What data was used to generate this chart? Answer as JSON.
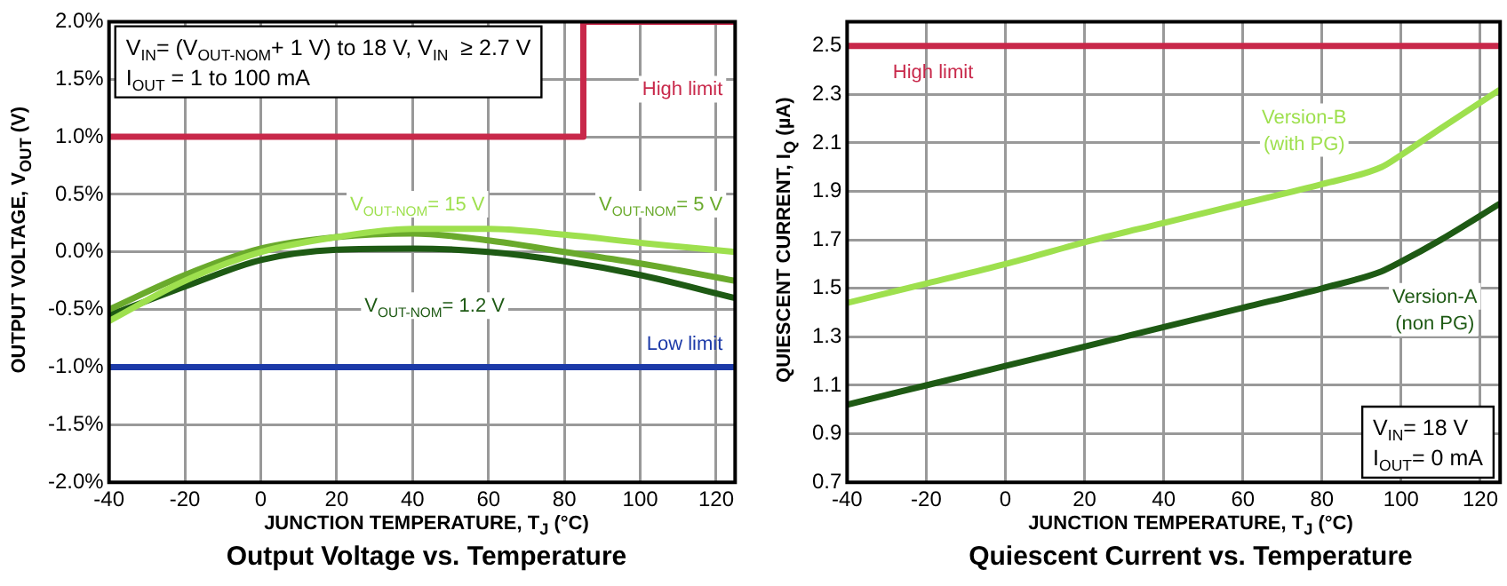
{
  "chart_data": [
    {
      "type": "line",
      "title": "Output Voltage vs. Temperature",
      "xlabel": "JUNCTION TEMPERATURE, T$_{J}$ (°C)",
      "ylabel": "OUTPUT VOLTAGE, V$_{OUT}$ (V)",
      "xlim": [
        -40,
        125
      ],
      "xticks": [
        -40,
        -20,
        0,
        20,
        40,
        60,
        80,
        100,
        120
      ],
      "ylim": [
        -2,
        2
      ],
      "yticks": [
        {
          "value": -2,
          "label": "-2.0%"
        },
        {
          "value": -1.5,
          "label": "-1.5%"
        },
        {
          "value": -1,
          "label": "-1.0%"
        },
        {
          "value": -0.5,
          "label": "-0.5%"
        },
        {
          "value": 0,
          "label": "0.0%"
        },
        {
          "value": 0.5,
          "label": "0.5%"
        },
        {
          "value": 1,
          "label": "1.0%"
        },
        {
          "value": 1.5,
          "label": "1.5%"
        },
        {
          "value": 2,
          "label": "2.0%"
        }
      ],
      "grid": true,
      "marker": "none",
      "legend": false,
      "series": [
        {
          "name": "High limit",
          "color": "#c8284a",
          "x": [
            -40,
            85,
            85,
            125
          ],
          "values": [
            1,
            1,
            2,
            2
          ]
        },
        {
          "name": "V$_{OUT-NOM}$= 15 V",
          "color": "#9ee04e",
          "x": [
            -40,
            -20,
            0,
            20,
            40,
            60,
            80,
            100,
            125
          ],
          "values": [
            -0.6,
            -0.25,
            0.0,
            0.13,
            0.2,
            0.2,
            0.15,
            0.08,
            0.0
          ]
        },
        {
          "name": "V$_{OUT-NOM}$= 5 V",
          "color": "#6aaa2c",
          "x": [
            -40,
            -20,
            0,
            20,
            40,
            60,
            80,
            100,
            125
          ],
          "values": [
            -0.5,
            -0.2,
            0.03,
            0.13,
            0.16,
            0.1,
            0.0,
            -0.1,
            -0.25
          ]
        },
        {
          "name": "V$_{OUT-NOM}$= 1.2 V",
          "color": "#1e5a14",
          "x": [
            -40,
            -20,
            0,
            20,
            40,
            60,
            80,
            100,
            125
          ],
          "values": [
            -0.55,
            -0.3,
            -0.07,
            0.02,
            0.03,
            0.0,
            -0.08,
            -0.2,
            -0.4
          ]
        }
      ],
      "ref_lines": [
        {
          "axis": "y",
          "value": -1,
          "label": "Low limit",
          "color": "#1c3aa8"
        }
      ],
      "annotations": [
        "V$_{IN}$= (V$_{OUT-NOM}$+ 1 V) to 18 V, V$_{IN}$  ≥ 2.7 V",
        "I$_{OUT}$ = 1 to 100 mA"
      ]
    },
    {
      "type": "line",
      "title": "Quiescent Current vs. Temperature",
      "xlabel": "JUNCTION TEMPERATURE, T$_{J}$ (°C)",
      "ylabel": "QUIESCENT CURRENT, I$_{Q}$ (µA)",
      "xlim": [
        -40,
        125
      ],
      "xticks": [
        -40,
        -20,
        0,
        20,
        40,
        60,
        80,
        100,
        120
      ],
      "ylim": [
        0.7,
        2.6
      ],
      "yticks": [
        0.7,
        0.9,
        1.1,
        1.3,
        1.5,
        1.7,
        1.9,
        2.1,
        2.3,
        2.5
      ],
      "grid": true,
      "marker": "none",
      "legend": false,
      "series": [
        {
          "name": "Version-B (with PG)",
          "color": "#9ee04e",
          "x": [
            -40,
            -20,
            0,
            20,
            40,
            60,
            80,
            95,
            100,
            110,
            125
          ],
          "values": [
            1.44,
            1.52,
            1.6,
            1.69,
            1.77,
            1.85,
            1.93,
            2.0,
            2.05,
            2.16,
            2.32
          ]
        },
        {
          "name": "Version-A (non PG)",
          "color": "#1e5a14",
          "x": [
            -40,
            -20,
            0,
            20,
            40,
            60,
            80,
            95,
            100,
            110,
            125
          ],
          "values": [
            1.02,
            1.1,
            1.18,
            1.26,
            1.34,
            1.42,
            1.5,
            1.57,
            1.61,
            1.7,
            1.85
          ]
        }
      ],
      "ref_lines": [
        {
          "axis": "y",
          "value": 2.5,
          "label": "High limit",
          "color": "#c8284a"
        }
      ],
      "annotations": [
        "V$_{IN}$= 18 V",
        "I$_{OUT}$= 0 mA"
      ]
    }
  ]
}
